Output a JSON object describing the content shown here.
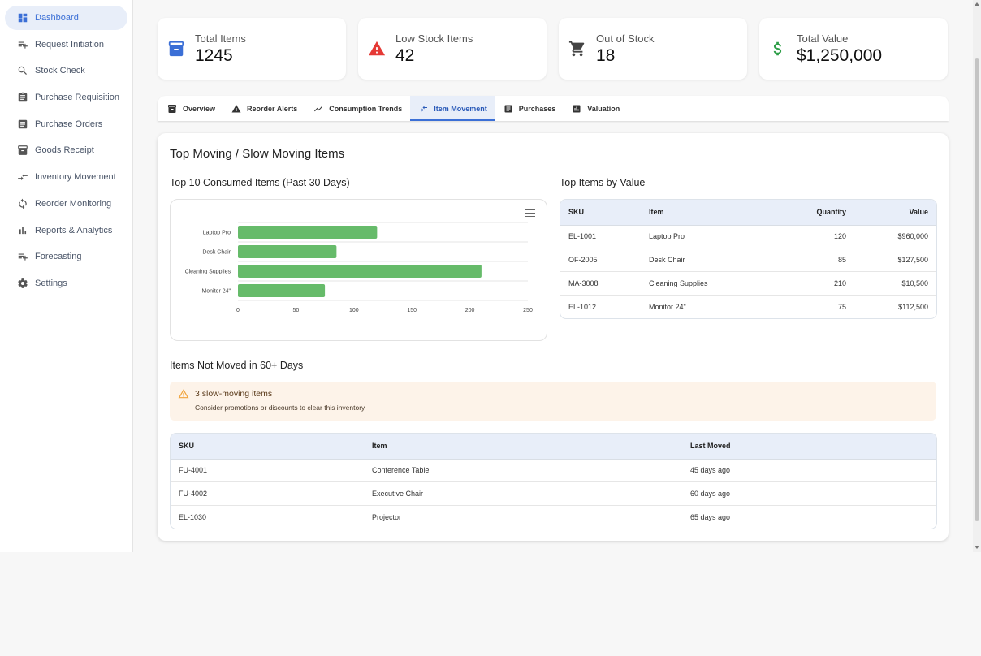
{
  "sidebar": {
    "items": [
      {
        "label": "Dashboard",
        "icon": "dashboard-icon"
      },
      {
        "label": "Request Initiation",
        "icon": "playlist-add-icon"
      },
      {
        "label": "Stock Check",
        "icon": "search-icon"
      },
      {
        "label": "Purchase Requisition",
        "icon": "clipboard-icon"
      },
      {
        "label": "Purchase Orders",
        "icon": "receipt-icon"
      },
      {
        "label": "Goods Receipt",
        "icon": "inventory-box-icon"
      },
      {
        "label": "Inventory Movement",
        "icon": "compare-arrows-icon"
      },
      {
        "label": "Reorder Monitoring",
        "icon": "refresh-icon"
      },
      {
        "label": "Reports & Analytics",
        "icon": "bar-chart-icon"
      },
      {
        "label": "Forecasting",
        "icon": "playlist-add-icon"
      },
      {
        "label": "Settings",
        "icon": "gear-icon"
      }
    ]
  },
  "stats": [
    {
      "label": "Total Items",
      "value": "1245",
      "icon": "inventory-box-icon",
      "color": "#3b6fd6"
    },
    {
      "label": "Low Stock Items",
      "value": "42",
      "icon": "warning-icon",
      "color": "#e53935"
    },
    {
      "label": "Out of Stock",
      "value": "18",
      "icon": "cart-icon",
      "color": "#444444"
    },
    {
      "label": "Total Value",
      "value": "$1,250,000",
      "icon": "dollar-icon",
      "color": "#2e9e48"
    }
  ],
  "tabs": [
    {
      "label": "Overview",
      "icon": "inventory-box-icon"
    },
    {
      "label": "Reorder Alerts",
      "icon": "warning-icon"
    },
    {
      "label": "Consumption Trends",
      "icon": "trending-icon"
    },
    {
      "label": "Item Movement",
      "icon": "compare-arrows-icon",
      "active": true
    },
    {
      "label": "Purchases",
      "icon": "receipt-icon"
    },
    {
      "label": "Valuation",
      "icon": "bar-chart-icon"
    }
  ],
  "panel": {
    "title": "Top Moving / Slow Moving Items",
    "chart_title": "Top 10 Consumed Items (Past 30 Days)",
    "value_table_title": "Top Items by Value",
    "not_moved_title": "Items Not Moved in 60+ Days"
  },
  "chart_data": {
    "type": "bar",
    "orientation": "horizontal",
    "categories": [
      "Laptop Pro",
      "Desk Chair",
      "Cleaning Supplies",
      "Monitor 24\""
    ],
    "values": [
      120,
      85,
      210,
      75
    ],
    "xlim": [
      0,
      250
    ],
    "xticks": [
      "0",
      "50",
      "100",
      "150",
      "200",
      "250"
    ],
    "bar_color": "#66bb6a",
    "grid": true,
    "title": "",
    "xlabel": "",
    "ylabel": ""
  },
  "value_table": {
    "headers": [
      "SKU",
      "Item",
      "Quantity",
      "Value"
    ],
    "rows": [
      [
        "EL-1001",
        "Laptop Pro",
        "120",
        "$960,000"
      ],
      [
        "OF-2005",
        "Desk Chair",
        "85",
        "$127,500"
      ],
      [
        "MA-3008",
        "Cleaning Supplies",
        "210",
        "$10,500"
      ],
      [
        "EL-1012",
        "Monitor 24\"",
        "75",
        "$112,500"
      ]
    ]
  },
  "alert": {
    "title": "3 slow-moving items",
    "subtitle": "Consider promotions or discounts to clear this inventory",
    "icon": "warning-outline-icon",
    "color": "#f0a33a"
  },
  "slow_table": {
    "headers": [
      "SKU",
      "Item",
      "Last Moved"
    ],
    "rows": [
      [
        "FU-4001",
        "Conference Table",
        "45 days ago"
      ],
      [
        "FU-4002",
        "Executive Chair",
        "60 days ago"
      ],
      [
        "EL-1030",
        "Projector",
        "65 days ago"
      ]
    ]
  }
}
